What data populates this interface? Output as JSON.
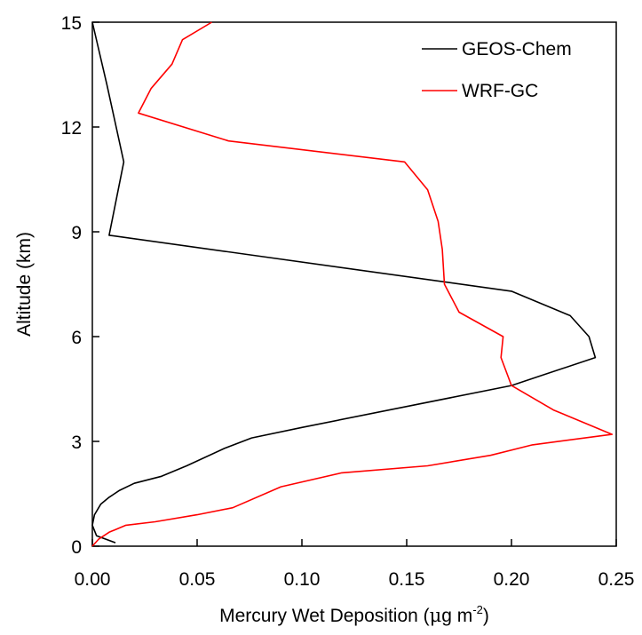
{
  "chart_data": {
    "type": "line",
    "title": "",
    "xlabel_main": "Mercury Wet Deposition (",
    "xlabel_mu": "μ",
    "xlabel_unit": "g m",
    "xlabel_exp": "-2",
    "xlabel_close": ")",
    "ylabel": "Altitude (km)",
    "xlim": [
      0,
      0.25
    ],
    "ylim": [
      0,
      15
    ],
    "xticks": [
      "0.00",
      "0.05",
      "0.10",
      "0.15",
      "0.20",
      "0.25"
    ],
    "yticks": [
      "0",
      "3",
      "6",
      "9",
      "12",
      "15"
    ],
    "grid": false,
    "legend_position": "top-right",
    "series": [
      {
        "name": "GEOS-Chem",
        "color": "#000000",
        "x": [
          0.011,
          0.002,
          0.0,
          0.001,
          0.004,
          0.008,
          0.013,
          0.02,
          0.033,
          0.045,
          0.063,
          0.076,
          0.1,
          0.15,
          0.2,
          0.215,
          0.24,
          0.237,
          0.228,
          0.2,
          0.008,
          0.015,
          0.007,
          0.0
        ],
        "y": [
          0.1,
          0.3,
          0.6,
          0.9,
          1.2,
          1.4,
          1.6,
          1.8,
          2.0,
          2.3,
          2.8,
          3.1,
          3.4,
          4.0,
          4.6,
          4.9,
          5.4,
          6.0,
          6.6,
          7.3,
          8.9,
          11.0,
          13.2,
          15.0
        ],
        "x_ticks_note": ""
      },
      {
        "name": "WRF-GC",
        "color": "#ff0000",
        "x": [
          0.0,
          0.003,
          0.008,
          0.016,
          0.03,
          0.05,
          0.067,
          0.09,
          0.119,
          0.16,
          0.19,
          0.21,
          0.248,
          0.22,
          0.2,
          0.195,
          0.196,
          0.175,
          0.168,
          0.167,
          0.165,
          0.16,
          0.149,
          0.065,
          0.022,
          0.028,
          0.038,
          0.043,
          0.057
        ],
        "y": [
          0.0,
          0.2,
          0.4,
          0.6,
          0.7,
          0.9,
          1.1,
          1.7,
          2.1,
          2.3,
          2.6,
          2.9,
          3.2,
          3.9,
          4.6,
          5.4,
          6.0,
          6.7,
          7.5,
          8.5,
          9.3,
          10.2,
          11.0,
          11.6,
          12.4,
          13.1,
          13.8,
          14.5,
          15.0
        ]
      }
    ]
  }
}
